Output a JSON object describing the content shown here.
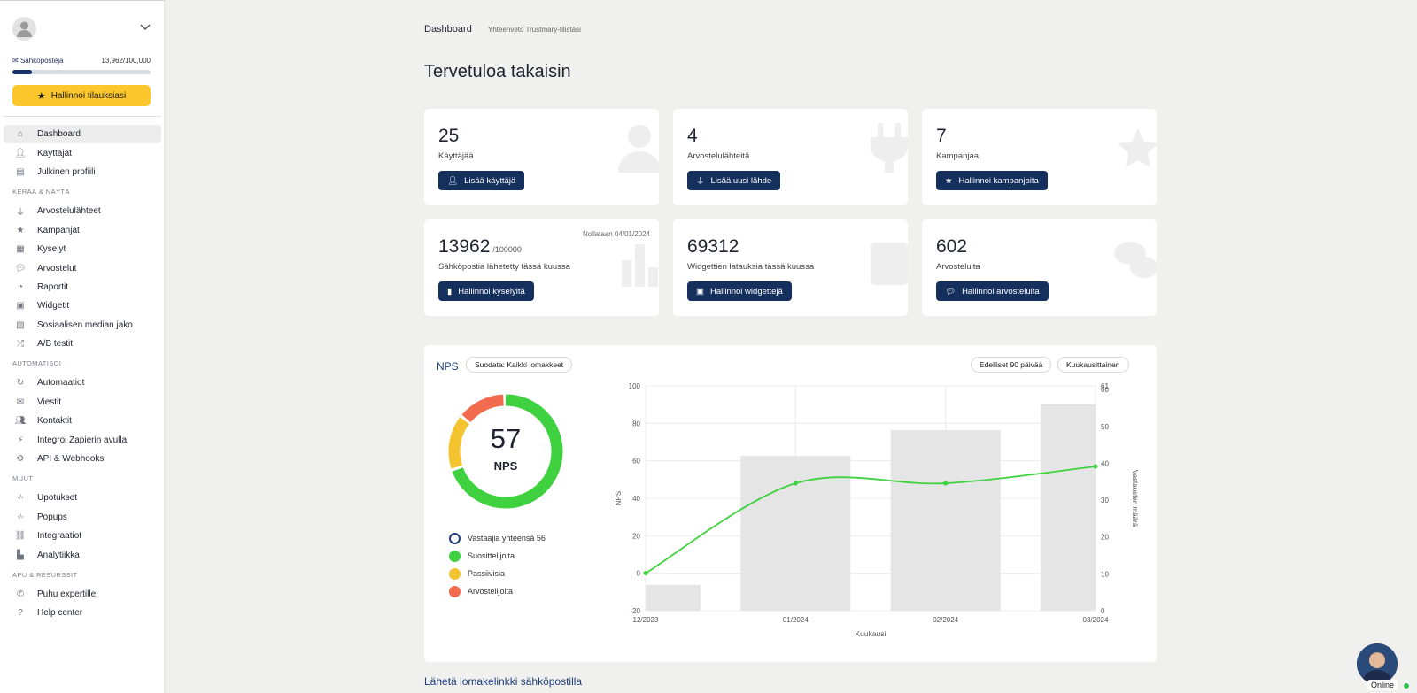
{
  "sidebar": {
    "quota_label": "Sähköposteja",
    "quota_value": "13,962/100,000",
    "quota_fraction": 0.14,
    "subscribe_button": "Hallinnoi tilauksiasi",
    "items_main": [
      {
        "label": "Dashboard",
        "icon": "home-icon",
        "active": true
      },
      {
        "label": "Käyttäjät",
        "icon": "add-user-icon"
      },
      {
        "label": "Julkinen profiili",
        "icon": "store-icon"
      }
    ],
    "section_collect": "KERÄÄ & NÄYTÄ",
    "items_collect": [
      {
        "label": "Arvostelulähteet",
        "icon": "plug-icon"
      },
      {
        "label": "Kampanjat",
        "icon": "star-icon"
      },
      {
        "label": "Kyselyt",
        "icon": "form-icon"
      },
      {
        "label": "Arvostelut",
        "icon": "comments-icon"
      },
      {
        "label": "Raportit",
        "icon": "pie-chart-icon"
      },
      {
        "label": "Widgetit",
        "icon": "calendar-icon"
      },
      {
        "label": "Sosiaalisen median jako",
        "icon": "image-icon"
      },
      {
        "label": "A/B testit",
        "icon": "shuffle-icon"
      }
    ],
    "section_automate": "AUTOMATISOI",
    "items_automate": [
      {
        "label": "Automaatiot",
        "icon": "refresh-icon"
      },
      {
        "label": "Viestit",
        "icon": "envelope-icon"
      },
      {
        "label": "Kontaktit",
        "icon": "users-icon"
      },
      {
        "label": "Integroi Zapierin avulla",
        "icon": "bolt-icon"
      },
      {
        "label": "API & Webhooks",
        "icon": "cogs-icon"
      }
    ],
    "section_other": "MUUT",
    "items_other": [
      {
        "label": "Upotukset",
        "icon": "code-icon"
      },
      {
        "label": "Popups",
        "icon": "code-icon"
      },
      {
        "label": "Integraatiot",
        "icon": "link-icon"
      },
      {
        "label": "Analytiikka",
        "icon": "bar-chart-icon"
      }
    ],
    "section_help": "APU & RESURSSIT",
    "items_help": [
      {
        "label": "Puhu expertille",
        "icon": "phone-icon"
      },
      {
        "label": "Help center",
        "icon": "question-icon"
      }
    ]
  },
  "header": {
    "breadcrumb": "Dashboard",
    "breadcrumb_sub": "Yhteenveto Trustmary-tilistäsi",
    "welcome": "Tervetuloa takaisin"
  },
  "cards": [
    {
      "number": "25",
      "label": "Käyttäjää",
      "button": "Lisää käyttäjä"
    },
    {
      "number": "4",
      "label": "Arvostelulähteitä",
      "button": "Lisää uusi lähde"
    },
    {
      "number": "7",
      "label": "Kampanjaa",
      "button": "Hallinnoi kampanjoita"
    },
    {
      "number": "13962",
      "suffix": "/100000",
      "note": "Nollataan 04/01/2024",
      "label": "Sähköpostia lähetetty tässä kuussa",
      "button": "Hallinnoi kyselyitä"
    },
    {
      "number": "69312",
      "label": "Widgettien latauksia tässä kuussa",
      "button": "Hallinnoi widgettejä"
    },
    {
      "number": "602",
      "label": "Arvosteluita",
      "button": "Hallinnoi arvosteluita"
    }
  ],
  "nps": {
    "title": "NPS",
    "filter": "Suodata: Kaikki lomakkeet",
    "range_button": "Edelliset 90 päivää",
    "interval_button": "Kuukausittainen",
    "score": "57",
    "score_label": "NPS",
    "promoter_share": 0.7,
    "passive_share": 0.16,
    "detractor_share": 0.14,
    "legend": [
      {
        "label": "Vastaajia yhteensä 56",
        "color": "#1f3f7c",
        "outline": true
      },
      {
        "label": "Suosittelijoita",
        "color": "#3fd13f"
      },
      {
        "label": "Passiivisia",
        "color": "#f4c430"
      },
      {
        "label": "Arvostelijoita",
        "color": "#f26b4f"
      }
    ],
    "colors": {
      "promoter": "#3fd13f",
      "passive": "#f4c430",
      "detractor": "#f26b4f",
      "bar": "#e5e5e5",
      "line": "#3fd13f"
    }
  },
  "chart_data": {
    "type": "bar",
    "categories": [
      "12/2023",
      "01/2024",
      "02/2024",
      "03/2024"
    ],
    "xlabel": "Kuukausi",
    "ylabel": "NPS",
    "y2label": "Vastausten määrä",
    "ylim": [
      -20,
      100
    ],
    "y2lim": [
      0,
      61
    ],
    "yticks": [
      -20,
      0,
      20,
      40,
      60,
      80,
      100
    ],
    "y2ticks": [
      0,
      10,
      20,
      30,
      40,
      50,
      60,
      61
    ],
    "series": [
      {
        "type": "bar",
        "axis": "right",
        "values": [
          7,
          42,
          49,
          56
        ]
      },
      {
        "type": "line",
        "axis": "left",
        "values": [
          0,
          48,
          48,
          57
        ]
      }
    ],
    "grid": true
  },
  "footer": {
    "link": "Lähetä lomakelinkki sähköpostilla",
    "online": "Online"
  }
}
